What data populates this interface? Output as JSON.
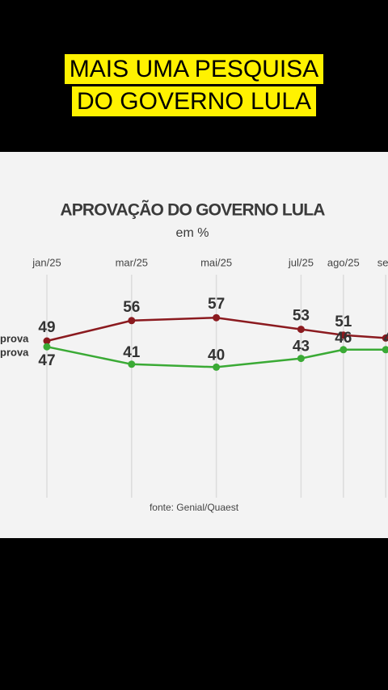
{
  "caption": "MAIS UMA PESQUISA DO GOVERNO LULA",
  "chart_data": {
    "type": "line",
    "title": "APROVAÇÃO DO GOVERNO LULA",
    "subtitle": "em %",
    "source": "fonte: Genial/Quaest",
    "categories": [
      "jan/25",
      "mar/25",
      "mai/25",
      "jul/25",
      "ago/25",
      "set/"
    ],
    "ylim": [
      30,
      70
    ],
    "grid": true,
    "series": [
      {
        "name": "prova",
        "color": "#8b1a1f",
        "values": [
          49,
          56,
          57,
          53,
          51,
          50
        ]
      },
      {
        "name": "prova",
        "color": "#3aaa35",
        "values": [
          47,
          41,
          40,
          43,
          46,
          46
        ]
      }
    ]
  }
}
